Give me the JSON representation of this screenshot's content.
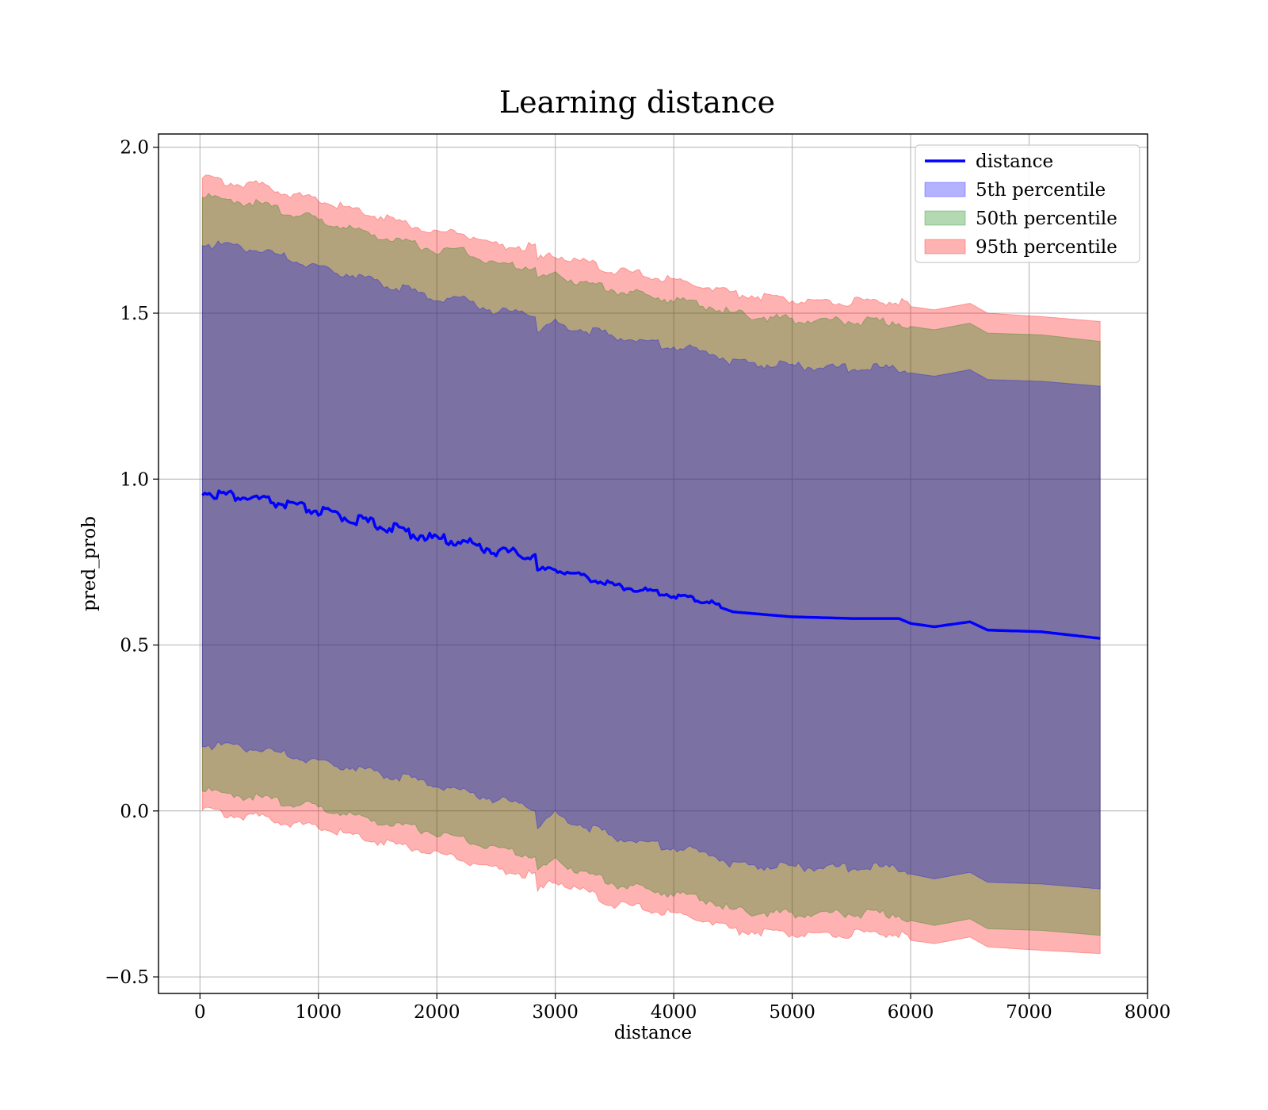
{
  "chart_data": {
    "type": "line",
    "title": "Learning distance",
    "xlabel": "distance",
    "ylabel": "pred_prob",
    "xlim": [
      -350,
      8000
    ],
    "ylim": [
      -0.55,
      2.04
    ],
    "xticks": [
      0,
      1000,
      2000,
      3000,
      4000,
      5000,
      6000,
      7000,
      8000
    ],
    "yticks": [
      -0.5,
      0.0,
      0.5,
      1.0,
      1.5,
      2.0
    ],
    "xtick_labels": [
      "0",
      "1000",
      "2000",
      "3000",
      "4000",
      "5000",
      "6000",
      "7000",
      "8000"
    ],
    "ytick_labels": [
      "−0.5",
      "0.0",
      "0.5",
      "1.0",
      "1.5",
      "2.0"
    ],
    "grid": true,
    "legend_position": "top-right",
    "x": [
      20,
      500,
      1000,
      1500,
      2000,
      2200,
      2500,
      2830,
      2850,
      3000,
      3500,
      4000,
      4300,
      4500,
      5000,
      5500,
      5900,
      6000,
      6200,
      6500,
      6650,
      7100,
      7600
    ],
    "series": [
      {
        "name": "distance",
        "kind": "line",
        "color": "#0000ff",
        "values": [
          0.955,
          0.93,
          0.895,
          0.855,
          0.81,
          0.805,
          0.775,
          0.76,
          0.715,
          0.725,
          0.675,
          0.645,
          0.625,
          0.6,
          0.585,
          0.58,
          0.58,
          0.565,
          0.555,
          0.57,
          0.545,
          0.54,
          0.52
        ]
      },
      {
        "name": "5th percentile",
        "kind": "band",
        "color": "#0000ff",
        "lower": [
          0.2,
          0.185,
          0.15,
          0.115,
          0.08,
          0.06,
          0.035,
          0.01,
          -0.04,
          -0.01,
          -0.08,
          -0.11,
          -0.13,
          -0.16,
          -0.17,
          -0.17,
          -0.17,
          -0.19,
          -0.205,
          -0.185,
          -0.215,
          -0.22,
          -0.235
        ],
        "upper": [
          1.71,
          1.69,
          1.64,
          1.595,
          1.545,
          1.545,
          1.505,
          1.5,
          1.455,
          1.47,
          1.43,
          1.4,
          1.38,
          1.355,
          1.34,
          1.335,
          1.335,
          1.32,
          1.31,
          1.33,
          1.3,
          1.295,
          1.28
        ]
      },
      {
        "name": "50th percentile",
        "kind": "band",
        "color": "#008000",
        "lower": [
          0.06,
          0.04,
          0.01,
          -0.03,
          -0.065,
          -0.085,
          -0.115,
          -0.135,
          -0.185,
          -0.15,
          -0.22,
          -0.25,
          -0.27,
          -0.3,
          -0.31,
          -0.31,
          -0.31,
          -0.33,
          -0.345,
          -0.325,
          -0.355,
          -0.36,
          -0.375
        ],
        "upper": [
          1.85,
          1.83,
          1.78,
          1.735,
          1.69,
          1.69,
          1.645,
          1.64,
          1.6,
          1.615,
          1.57,
          1.54,
          1.52,
          1.5,
          1.48,
          1.475,
          1.475,
          1.46,
          1.45,
          1.47,
          1.44,
          1.435,
          1.415
        ]
      },
      {
        "name": "95th percentile",
        "kind": "band",
        "color": "#ff0000",
        "lower": [
          0.0,
          -0.02,
          -0.05,
          -0.09,
          -0.125,
          -0.145,
          -0.175,
          -0.195,
          -0.245,
          -0.21,
          -0.28,
          -0.31,
          -0.33,
          -0.36,
          -0.37,
          -0.37,
          -0.37,
          -0.39,
          -0.4,
          -0.38,
          -0.41,
          -0.42,
          -0.43
        ],
        "upper": [
          1.905,
          1.885,
          1.84,
          1.795,
          1.745,
          1.745,
          1.705,
          1.7,
          1.66,
          1.675,
          1.63,
          1.6,
          1.58,
          1.56,
          1.54,
          1.535,
          1.535,
          1.52,
          1.51,
          1.53,
          1.5,
          1.49,
          1.475
        ]
      }
    ]
  }
}
